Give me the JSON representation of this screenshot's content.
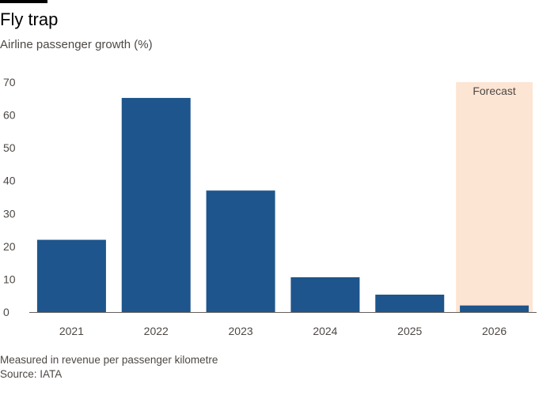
{
  "header": {
    "title": "Fly trap",
    "subtitle": "Airline passenger growth (%)"
  },
  "footer": {
    "note": "Measured in revenue per passenger kilometre",
    "source": "Source: IATA"
  },
  "colors": {
    "bar": "#1e558c",
    "forecast_band": "#fde5d3",
    "axis_line": "#66605c"
  },
  "chart_data": {
    "type": "bar",
    "categories": [
      "2021",
      "2022",
      "2023",
      "2024",
      "2025",
      "2026"
    ],
    "values": [
      22,
      65.2,
      37,
      10.6,
      5.3,
      2
    ],
    "title": "Fly trap",
    "subtitle": "Airline passenger growth (%)",
    "xlabel": "",
    "ylabel": "",
    "ylim": [
      0,
      70
    ],
    "yticks": [
      0,
      10,
      20,
      30,
      40,
      50,
      60,
      70
    ],
    "grid": false,
    "legend": "none",
    "annotations": [
      {
        "category": "2026",
        "label": "Forecast"
      }
    ]
  }
}
